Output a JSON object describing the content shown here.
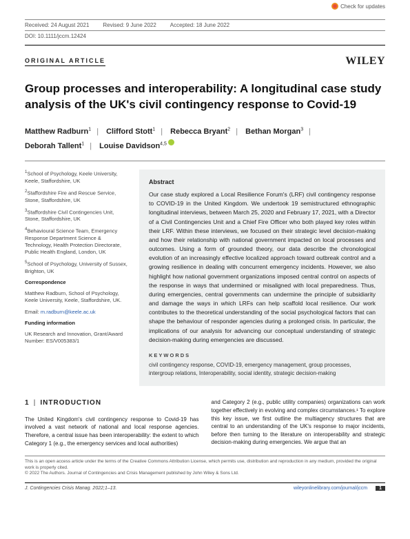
{
  "check_updates": "Check for updates",
  "received": "Received: 24 August 2021",
  "revised": "Revised: 9 June 2022",
  "accepted": "Accepted: 18 June 2022",
  "doi": "DOI: 10.1111/jccm.12424",
  "article_type": "ORIGINAL ARTICLE",
  "publisher": "WILEY",
  "title": "Group processes and interoperability: A longitudinal case study analysis of the UK's civil contingency response to Covid-19",
  "authors": [
    {
      "name": "Matthew Radburn",
      "aff": "1"
    },
    {
      "name": "Clifford Stott",
      "aff": "1"
    },
    {
      "name": "Rebecca Bryant",
      "aff": "2"
    },
    {
      "name": "Bethan Morgan",
      "aff": "3"
    },
    {
      "name": "Deborah Tallent",
      "aff": "1"
    },
    {
      "name": "Louise Davidson",
      "aff": "4,5",
      "orcid": true
    }
  ],
  "affiliations": [
    "School of Psychology, Keele University, Keele, Staffordshire, UK",
    "Staffordshire Fire and Rescue Service, Stone, Staffordshire, UK",
    "Staffordshire Civil Contingencies Unit, Stone, Staffordshire, UK",
    "Behavioural Science Team, Emergency Response Department Science & Technology, Health Protection Directorate, Public Health England, London, UK",
    "School of Psychology, University of Sussex, Brighton, UK"
  ],
  "correspondence_hdr": "Correspondence",
  "correspondence": "Matthew Radburn, School of Psychology, Keele University, Keele, Staffordshire, UK.",
  "email_label": "Email: ",
  "email": "m.radburn@keele.ac.uk",
  "funding_hdr": "Funding information",
  "funding": "UK Research and Innovation, Grant/Award Number: ES/V005383/1",
  "abstract_hdr": "Abstract",
  "abstract": "Our case study explored a Local Resilience Forum's (LRF) civil contingency response to COVID-19 in the United Kingdom. We undertook 19 semistructured ethnographic longitudinal interviews, between March 25, 2020 and February 17, 2021, with a Director of a Civil Contingencies Unit and a Chief Fire Officer who both played key roles within their LRF. Within these interviews, we focused on their strategic level decision-making and how their relationship with national government impacted on local processes and outcomes. Using a form of grounded theory, our data describe the chronological evolution of an increasingly effective localized approach toward outbreak control and a growing resilience in dealing with concurrent emergency incidents. However, we also highlight how national government organizations imposed central control on aspects of the response in ways that undermined or misaligned with local preparedness. Thus, during emergencies, central governments can undermine the principle of subsidiarity and damage the ways in which LRFs can help scaffold local resilience. Our work contributes to the theoretical understanding of the social psychological factors that can shape the behaviour of responder agencies during a prolonged crisis. In particular, the implications of our analysis for advancing our conceptual understanding of strategic decision-making during emergencies are discussed.",
  "keywords_hdr": "KEYWORDS",
  "keywords": "civil contingency response, COVID-19, emergency management, group processes, intergroup relations, Interoperability, social identity, strategic decision-making",
  "section_num": "1",
  "section_title": "INTRODUCTION",
  "body_left": "The United Kingdom's civil contingency response to Covid-19 has involved a vast network of national and local response agencies. Therefore, a central issue has been interoperability: the extent to which Category 1 (e.g., the emergency services and local authorities)",
  "body_right": "and Category 2 (e.g., public utility companies) organizations can work together effectively in evolving and complex circumstances.¹ To explore this key issue, we first outline the multiagency structures that are central to an understanding of the UK's response to major incidents, before then turning to the literature on interoperability and strategic decision-making during emergencies. We argue that an",
  "license1": "This is an open access article under the terms of the Creative Commons Attribution License, which permits use, distribution and reproduction in any medium, provided the original work is properly cited.",
  "license2": "© 2022 The Authors. Journal of Contingencies and Crisis Management published by John Wiley & Sons Ltd.",
  "journal": "J. Contingencies Crisis Manag. 2022;1–13.",
  "url": "wileyonlinelibrary.com/journal/jccm",
  "page": "1",
  "colors": {
    "link": "#2b5fad",
    "abstract_bg": "#eef0f0"
  }
}
